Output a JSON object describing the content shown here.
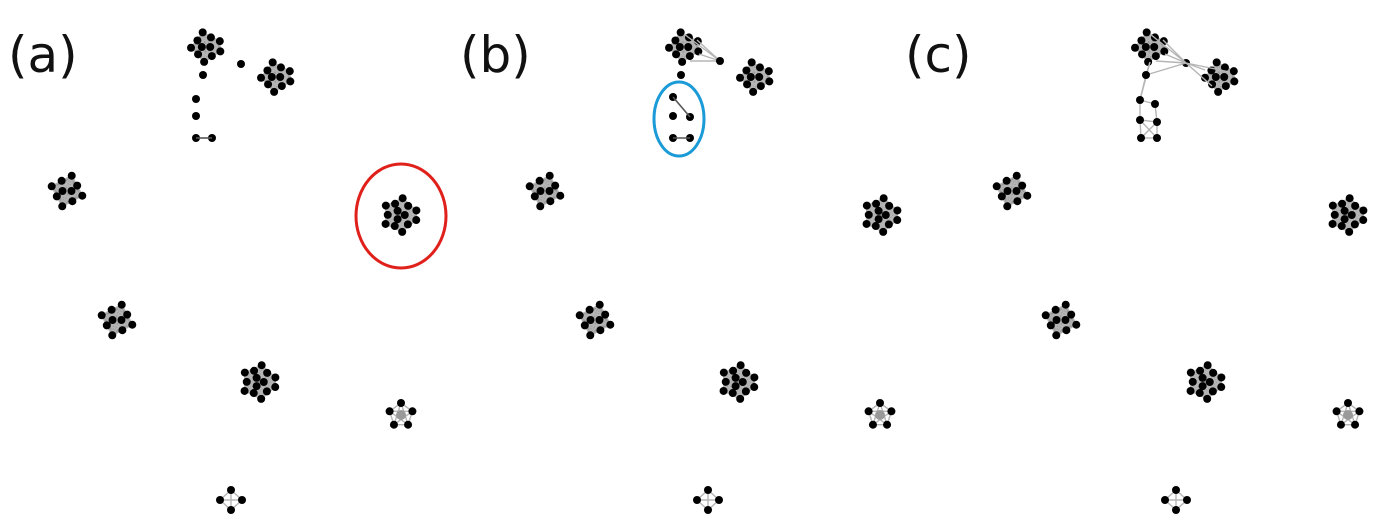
{
  "panels": [
    {
      "label": "(a)"
    },
    {
      "label": "(b)"
    },
    {
      "label": "(c)"
    }
  ],
  "colors": {
    "node": "#000000",
    "edge": "#b5b5b5",
    "highlight_a": "#e0201b",
    "highlight_b": "#1a9ad6"
  }
}
